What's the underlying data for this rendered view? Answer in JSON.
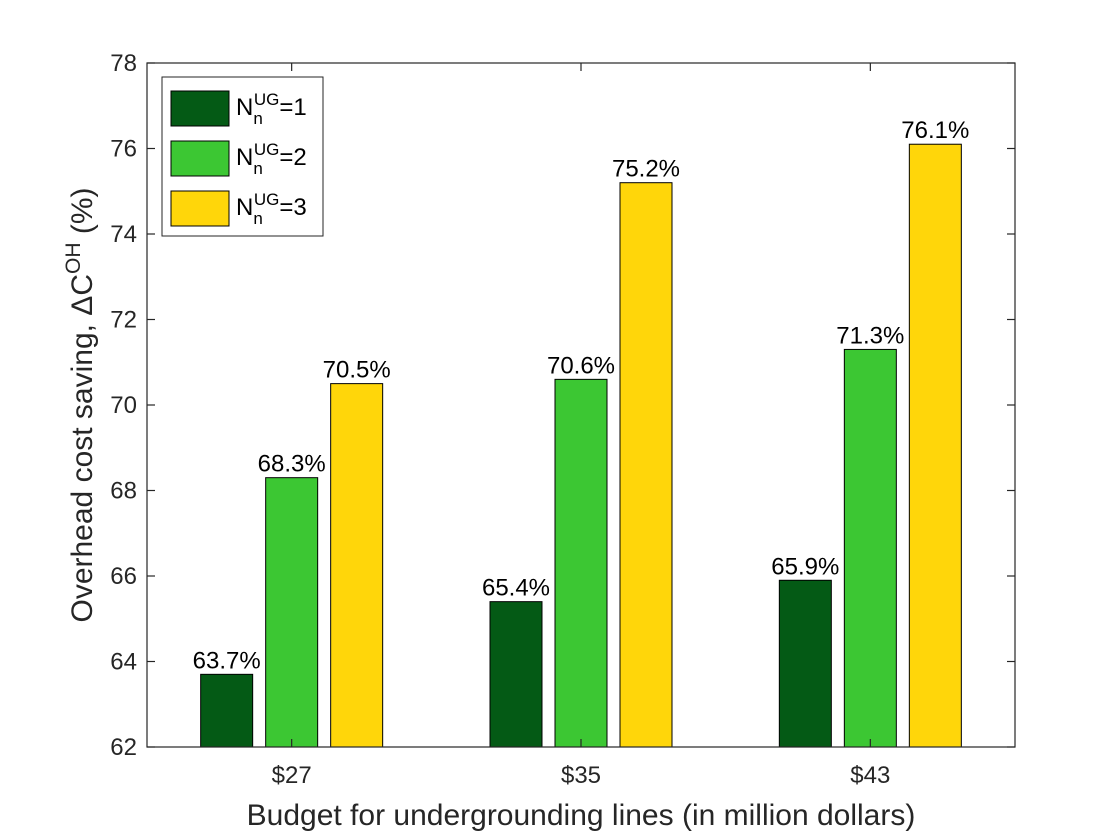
{
  "chart_data": {
    "type": "bar",
    "title": "",
    "xlabel": "Budget for undergrounding lines (in million dollars)",
    "ylabel": "Overhead cost saving, ΔC",
    "ylabel_superscript": "OH",
    "ylabel_unit": " (%)",
    "categories": [
      "$27",
      "$35",
      "$43"
    ],
    "ylim": [
      62,
      78
    ],
    "yticks": [
      62,
      64,
      66,
      68,
      70,
      72,
      74,
      76,
      78
    ],
    "grid": false,
    "legend_position": "top-left",
    "series": [
      {
        "name": "N_n^UG=1",
        "legend_base": "N",
        "legend_sub": "n",
        "legend_sup": "UG",
        "legend_rest": "=1",
        "color": "#045A15",
        "values": [
          63.7,
          65.4,
          65.9
        ],
        "labels": [
          "63.7%",
          "65.4%",
          "65.9%"
        ]
      },
      {
        "name": "N_n^UG=2",
        "legend_base": "N",
        "legend_sub": "n",
        "legend_sup": "UG",
        "legend_rest": "=2",
        "color": "#3CC733",
        "values": [
          68.3,
          70.6,
          71.3
        ],
        "labels": [
          "68.3%",
          "70.6%",
          "71.3%"
        ]
      },
      {
        "name": "N_n^UG=3",
        "legend_base": "N",
        "legend_sub": "n",
        "legend_sup": "UG",
        "legend_rest": "=3",
        "color": "#FFD60A",
        "values": [
          70.5,
          75.2,
          76.1
        ],
        "labels": [
          "70.5%",
          "75.2%",
          "76.1%"
        ]
      }
    ]
  }
}
